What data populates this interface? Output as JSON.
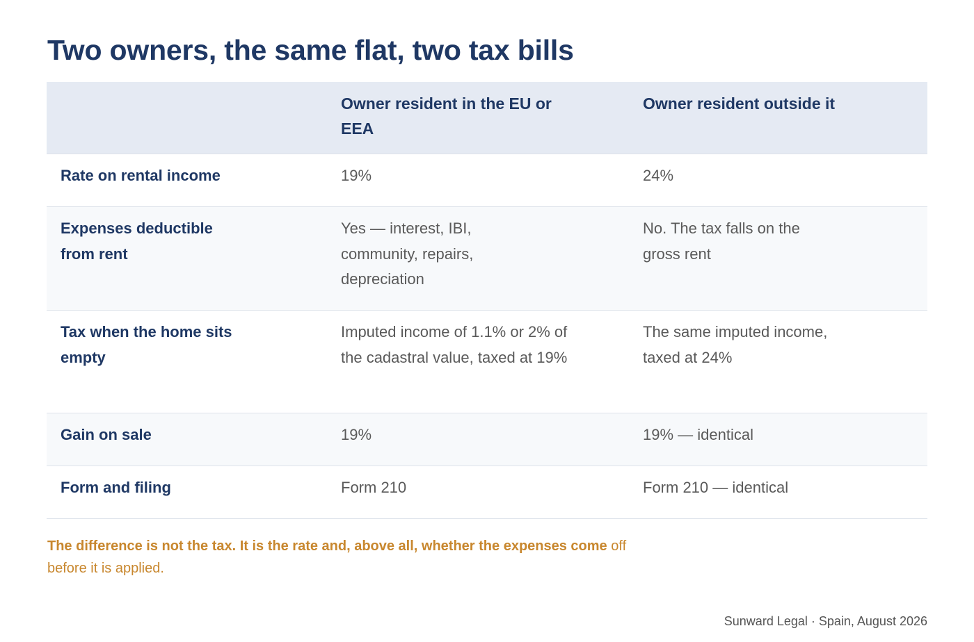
{
  "title": "Two owners, the same flat, two tax bills",
  "table": {
    "headers": [
      "",
      "Owner resident in the EU or EEA",
      "Owner resident outside it"
    ],
    "rows": [
      {
        "label": "Rate on rental income",
        "eu": "19%",
        "non_eu": "24%"
      },
      {
        "label": "Expenses deductible from rent",
        "eu": "Yes — interest, IBI, community, repairs, depreciation",
        "non_eu": "No. The tax falls on the gross rent"
      },
      {
        "label": "Tax when the home sits empty",
        "eu": "Imputed income of 1.1% or 2% of the cadastral value, taxed at 19%",
        "non_eu": "The same imputed income, taxed at 24%"
      },
      {
        "label": "Gain on sale",
        "eu": "19%",
        "non_eu": "19% — identical"
      },
      {
        "label": "Form and filing",
        "eu": "Form 210",
        "non_eu": "Form 210 — identical"
      }
    ]
  },
  "note": {
    "bold": "The difference is not the tax. It is the rate and, above all, whether the expenses come",
    "regular": "off before it is applied."
  },
  "footer": "Sunward Legal · Spain, August 2026",
  "colors": {
    "title": "#1f3864",
    "header_bg": "#e5eaf3",
    "alt_row_bg": "#f7f9fb",
    "note": "#c8872e",
    "value_text": "#5a5a5a"
  }
}
